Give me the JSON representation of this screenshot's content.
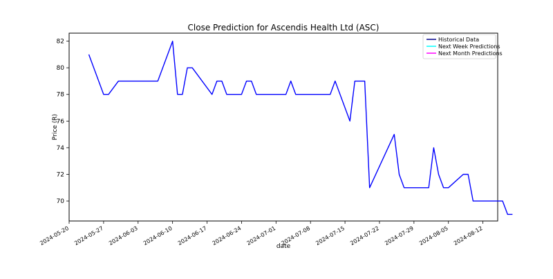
{
  "chart_data": {
    "type": "line",
    "title": "Close Prediction for Ascendis Health Ltd (ASC)",
    "xlabel": "date",
    "ylabel": "Price (R)",
    "x_range": [
      "2024-05-20",
      "2024-08-15"
    ],
    "ylim": [
      68.5,
      82.6
    ],
    "x_ticks": [
      "2024-05-20",
      "2024-05-27",
      "2024-06-03",
      "2024-06-10",
      "2024-06-17",
      "2024-06-24",
      "2024-07-01",
      "2024-07-08",
      "2024-07-15",
      "2024-07-22",
      "2024-07-29",
      "2024-08-05",
      "2024-08-12"
    ],
    "y_ticks": [
      70,
      72,
      74,
      76,
      78,
      80,
      82
    ],
    "grid": false,
    "legend_position": "top-right",
    "legend": [
      {
        "label": "Historical Data",
        "color": "#00008b"
      },
      {
        "label": "Next Week Predictions",
        "color": "#00ffff"
      },
      {
        "label": "Next Month Predictions",
        "color": "#ff00ff"
      }
    ],
    "series": [
      {
        "name": "Historical Data",
        "color": "#0000ff",
        "points": [
          [
            "2024-05-24",
            81
          ],
          [
            "2024-05-27",
            78
          ],
          [
            "2024-05-28",
            78
          ],
          [
            "2024-05-30",
            79
          ],
          [
            "2024-06-07",
            79
          ],
          [
            "2024-06-10",
            82
          ],
          [
            "2024-06-11",
            78
          ],
          [
            "2024-06-12",
            78
          ],
          [
            "2024-06-13",
            80
          ],
          [
            "2024-06-14",
            80
          ],
          [
            "2024-06-18",
            78
          ],
          [
            "2024-06-19",
            79
          ],
          [
            "2024-06-20",
            79
          ],
          [
            "2024-06-21",
            78
          ],
          [
            "2024-06-24",
            78
          ],
          [
            "2024-06-25",
            79
          ],
          [
            "2024-06-26",
            79
          ],
          [
            "2024-06-27",
            78
          ],
          [
            "2024-07-03",
            78
          ],
          [
            "2024-07-04",
            79
          ],
          [
            "2024-07-05",
            78
          ],
          [
            "2024-07-12",
            78
          ],
          [
            "2024-07-13",
            79
          ],
          [
            "2024-07-16",
            76
          ],
          [
            "2024-07-17",
            79
          ],
          [
            "2024-07-19",
            79
          ],
          [
            "2024-07-20",
            71
          ],
          [
            "2024-07-25",
            75
          ],
          [
            "2024-07-26",
            72
          ],
          [
            "2024-07-27",
            71
          ],
          [
            "2024-08-01",
            71
          ],
          [
            "2024-08-02",
            74
          ],
          [
            "2024-08-03",
            72
          ],
          [
            "2024-08-04",
            71
          ],
          [
            "2024-08-05",
            71
          ],
          [
            "2024-08-08",
            72
          ],
          [
            "2024-08-09",
            72
          ],
          [
            "2024-08-10",
            70
          ],
          [
            "2024-08-16",
            70
          ],
          [
            "2024-08-17",
            69
          ],
          [
            "2024-08-18",
            69
          ]
        ]
      }
    ]
  }
}
